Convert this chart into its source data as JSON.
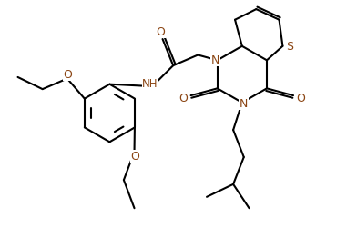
{
  "background_color": "#ffffff",
  "line_color": "#000000",
  "atom_label_color": "#8B4513",
  "bond_width": 1.5,
  "figsize": [
    3.92,
    2.51
  ],
  "dpi": 100,
  "xlim": [
    0,
    10
  ],
  "ylim": [
    0,
    6.4
  ]
}
